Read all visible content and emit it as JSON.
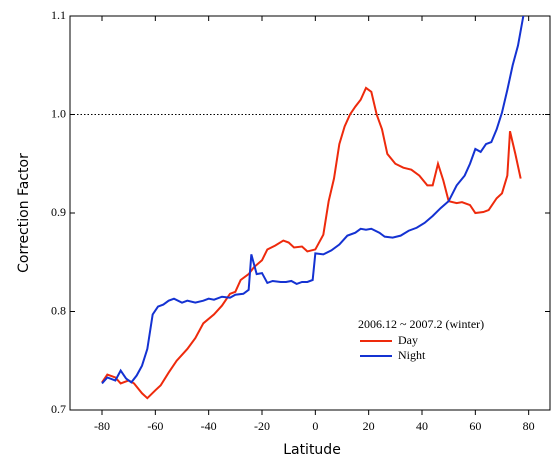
{
  "chart_data": {
    "type": "line",
    "xlabel": "Latitude",
    "ylabel": "Correction Factor",
    "legend_title": "2006.12 ~ 2007.2 (winter)",
    "legend": "lower right",
    "xlim": [
      -92,
      88
    ],
    "ylim": [
      0.7,
      1.1
    ],
    "xticks": [
      -80,
      -60,
      -40,
      -20,
      0,
      20,
      40,
      60,
      80
    ],
    "yticks": [
      0.7,
      0.8,
      0.9,
      {
        "value": 1,
        "label": "1.0"
      },
      1.1
    ],
    "hline": 1,
    "series": [
      {
        "name": "Day",
        "color": "#ee2a0c",
        "x": [
          -80,
          -78,
          -75,
          -73,
          -70,
          -68,
          -65,
          -63,
          -60,
          -58,
          -55,
          -52,
          -48,
          -45,
          -42,
          -38,
          -35,
          -32,
          -30,
          -28,
          -25,
          -23,
          -20,
          -18,
          -15,
          -12,
          -10,
          -8,
          -5,
          -3,
          0,
          3,
          5,
          7,
          9,
          11,
          13,
          15,
          17,
          19,
          21,
          23,
          25,
          27,
          30,
          33,
          36,
          39,
          42,
          44,
          46,
          48,
          50,
          53,
          55,
          58,
          60,
          63,
          65,
          68,
          70,
          72,
          73,
          75,
          77
        ],
        "values": [
          0.728,
          0.736,
          0.733,
          0.727,
          0.73,
          0.727,
          0.717,
          0.712,
          0.72,
          0.725,
          0.738,
          0.75,
          0.762,
          0.773,
          0.788,
          0.797,
          0.806,
          0.818,
          0.82,
          0.832,
          0.838,
          0.845,
          0.852,
          0.863,
          0.867,
          0.872,
          0.87,
          0.865,
          0.866,
          0.861,
          0.863,
          0.878,
          0.912,
          0.935,
          0.97,
          0.988,
          1.0,
          1.008,
          1.015,
          1.027,
          1.023,
          1.0,
          0.985,
          0.96,
          0.95,
          0.946,
          0.944,
          0.938,
          0.928,
          0.928,
          0.95,
          0.933,
          0.912,
          0.91,
          0.911,
          0.908,
          0.9,
          0.901,
          0.903,
          0.915,
          0.92,
          0.938,
          0.983,
          0.96,
          0.935
        ]
      },
      {
        "name": "Night",
        "color": "#1432d2",
        "x": [
          -80,
          -78,
          -75,
          -73,
          -71,
          -69,
          -67,
          -65,
          -63,
          -61,
          -59,
          -57,
          -55,
          -53,
          -50,
          -48,
          -45,
          -42,
          -40,
          -38,
          -35,
          -32,
          -30,
          -27,
          -25,
          -24,
          -22,
          -20,
          -18,
          -16,
          -13,
          -11,
          -9,
          -7,
          -5,
          -3,
          -1,
          0,
          3,
          6,
          9,
          12,
          15,
          17,
          19,
          21,
          24,
          26,
          29,
          32,
          35,
          38,
          41,
          44,
          47,
          50,
          53,
          56,
          58,
          60,
          62,
          64,
          66,
          68,
          70,
          72,
          74,
          76,
          78,
          79
        ],
        "values": [
          0.727,
          0.733,
          0.73,
          0.74,
          0.732,
          0.728,
          0.735,
          0.745,
          0.762,
          0.797,
          0.805,
          0.807,
          0.811,
          0.813,
          0.809,
          0.811,
          0.809,
          0.811,
          0.813,
          0.812,
          0.815,
          0.814,
          0.817,
          0.818,
          0.822,
          0.858,
          0.838,
          0.839,
          0.829,
          0.831,
          0.83,
          0.83,
          0.831,
          0.828,
          0.83,
          0.83,
          0.832,
          0.859,
          0.858,
          0.862,
          0.868,
          0.877,
          0.88,
          0.884,
          0.883,
          0.884,
          0.88,
          0.876,
          0.875,
          0.877,
          0.882,
          0.885,
          0.89,
          0.897,
          0.905,
          0.912,
          0.928,
          0.938,
          0.95,
          0.965,
          0.962,
          0.97,
          0.972,
          0.985,
          1.002,
          1.025,
          1.05,
          1.07,
          1.1,
          1.105
        ]
      }
    ]
  }
}
